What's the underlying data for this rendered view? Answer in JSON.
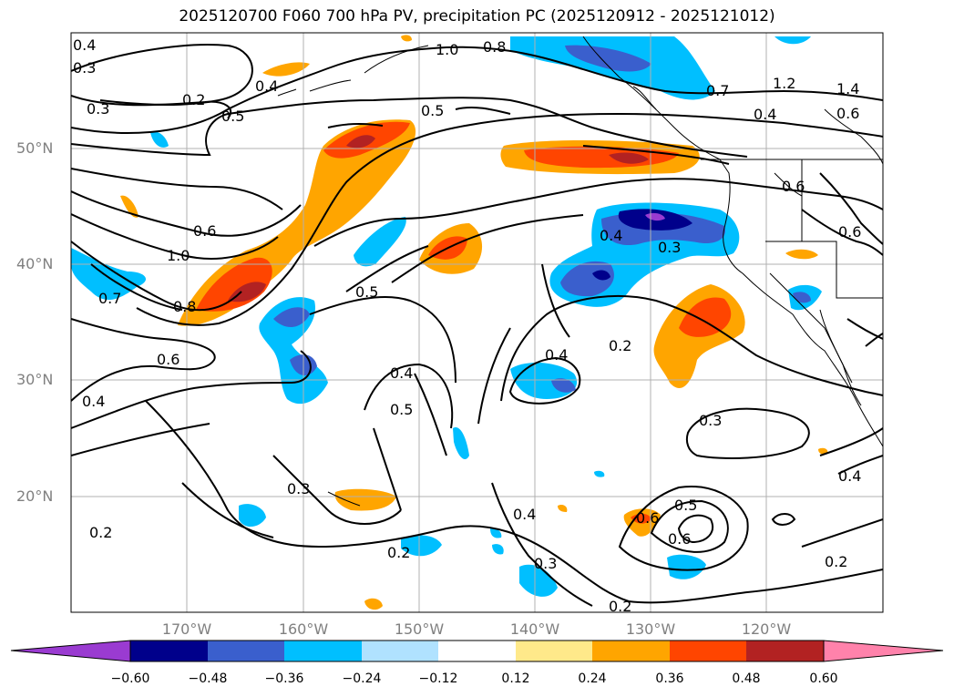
{
  "title": "2025120700 F060 700 hPa PV, precipitation PC (2025120912 - 2025121012)",
  "lat_labels": [
    "50°N",
    "40°N",
    "30°N",
    "20°N"
  ],
  "lon_labels": [
    "170°W",
    "160°W",
    "150°W",
    "140°W",
    "130°W",
    "120°W"
  ],
  "colorbar": {
    "ticks": [
      "−0.60",
      "−0.48",
      "−0.36",
      "−0.24",
      "−0.12",
      "0.12",
      "0.24",
      "0.36",
      "0.48",
      "0.60"
    ],
    "colors": [
      "#9a3bd1",
      "#00008b",
      "#3a5fcd",
      "#00bfff",
      "#b0e2ff",
      "#ffffff",
      "#ffe98a",
      "#ffa500",
      "#ff4500",
      "#b22222",
      "#ff82ab"
    ]
  },
  "contour_labels": [
    "0.4",
    "0.3",
    "0.2",
    "0.3",
    "0.5",
    "0.4",
    "1.0",
    "0.8",
    "0.5",
    "1.2",
    "1.4",
    "0.6",
    "0.7",
    "0.4",
    "0.6",
    "0.6",
    "0.6",
    "1.0",
    "0.8",
    "0.7",
    "0.4",
    "0.3",
    "0.5",
    "0.6",
    "0.4",
    "0.4",
    "0.5",
    "0.2",
    "0.3",
    "0.3",
    "0.4",
    "0.2",
    "0.4",
    "0.5",
    "0.6",
    "0.2",
    "0.3",
    "0.2",
    "0.2",
    "0.4",
    "0.6"
  ],
  "colors": {
    "shade_orange": "#ffa500",
    "shade_red": "#ff4500",
    "shade_darkred": "#b22222",
    "shade_cyan": "#00bfff",
    "shade_blue": "#3a5fcd",
    "shade_navy": "#00008b",
    "shade_purple": "#9a3bd1"
  }
}
